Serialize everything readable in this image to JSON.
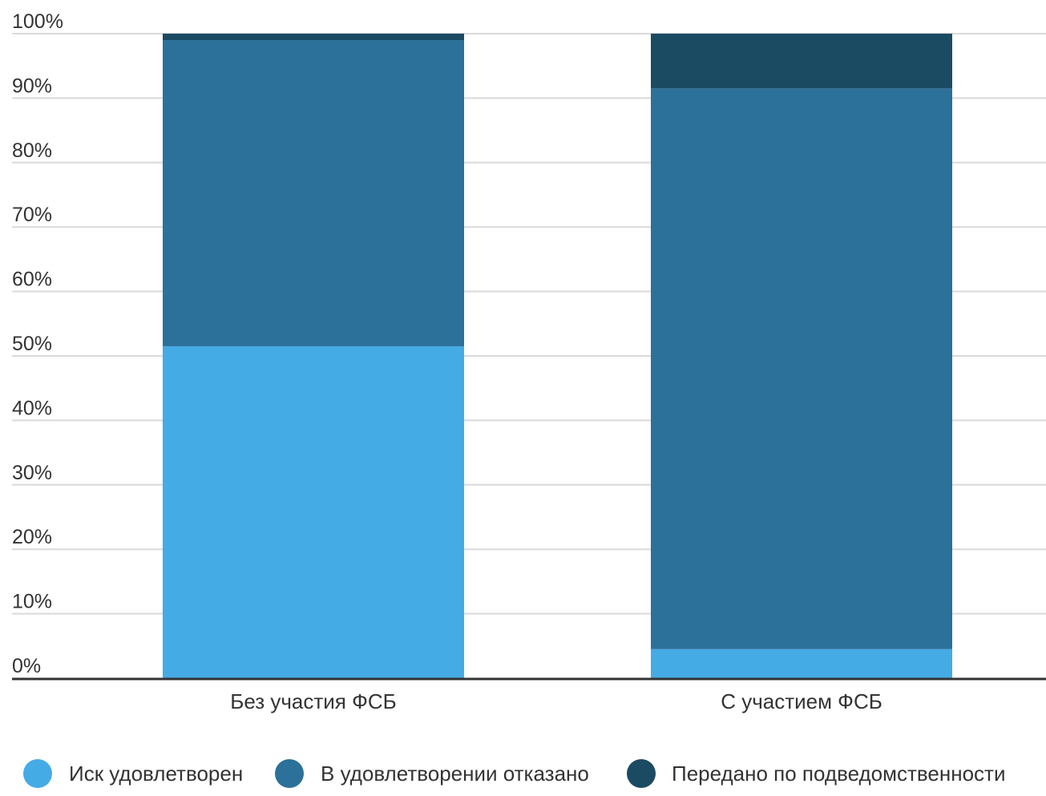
{
  "chart_data": {
    "type": "bar",
    "stacked": true,
    "percent": true,
    "title": "",
    "xlabel": "",
    "ylabel": "",
    "categories": [
      "Без участия ФСБ",
      "С участием ФСБ"
    ],
    "series": [
      {
        "name": "Иск удовлетворен",
        "values": [
          51.5,
          4.5
        ],
        "color": "#45abe5"
      },
      {
        "name": "В удовлетворении отказано",
        "values": [
          47.5,
          87.0
        ],
        "color": "#2c7199"
      },
      {
        "name": "Передано по подведомственности",
        "values": [
          1.0,
          8.5
        ],
        "color": "#1b4a63"
      }
    ],
    "ylim": [
      0,
      100
    ],
    "yticks": [
      0,
      10,
      20,
      30,
      40,
      50,
      60,
      70,
      80,
      90,
      100
    ],
    "ytick_labels": [
      "0%",
      "10%",
      "20%",
      "30%",
      "40%",
      "50%",
      "60%",
      "70%",
      "80%",
      "90%",
      "100%"
    ],
    "grid": true,
    "legend_position": "bottom"
  }
}
